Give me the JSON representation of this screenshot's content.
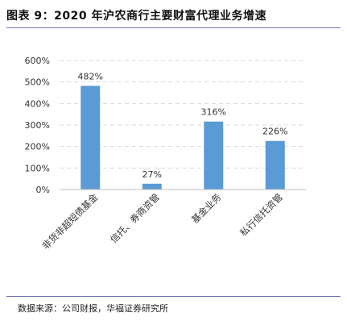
{
  "title": "图表 9：2020 年沪农商行主要财富代理业务增速",
  "source": "数据来源：公司财报，华福证券研究所",
  "colors": {
    "bar": "#5b9bd5",
    "rule": "#6b6fb5",
    "grid": "#d9d9d9",
    "axis": "#bfbfbf"
  },
  "chart_data": {
    "type": "bar",
    "title": "",
    "xlabel": "",
    "ylabel": "",
    "ylim": [
      0,
      600
    ],
    "yticks": [
      0,
      100,
      200,
      300,
      400,
      500,
      600
    ],
    "ytick_labels": [
      "0%",
      "100%",
      "200%",
      "300%",
      "400%",
      "500%",
      "600%"
    ],
    "grid": true,
    "legend": "none",
    "categories": [
      "非货非超短债基金",
      "信托、券商资管",
      "基金业务",
      "私行信托资管"
    ],
    "values": [
      482,
      27,
      316,
      226
    ],
    "value_labels": [
      "482%",
      "27%",
      "316%",
      "226%"
    ],
    "unit": "%"
  }
}
